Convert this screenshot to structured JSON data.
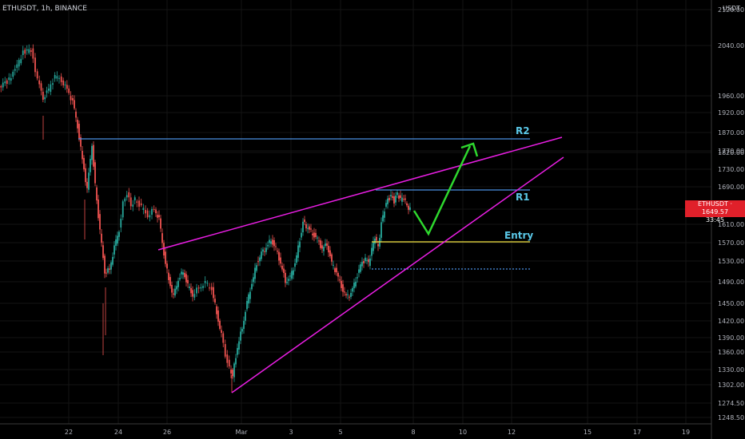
{
  "header": {
    "symbol_text": "ETHUSDT, 1h, BINANCE"
  },
  "price_axis": {
    "unit": "USDT"
  },
  "last_price": {
    "symbol": "ETHUSDT",
    "value": "1649.57",
    "countdown": "33:45"
  },
  "colors": {
    "background": "#000000",
    "up_candle": "#26a69a",
    "down_candle": "#ef5350",
    "wedge": "#e91ee3",
    "resistance": "#4a90e2",
    "entry": "#f5e642",
    "projection": "#2ed82e",
    "r_label": "#5ac8e8",
    "price_tag": "#e0202a"
  },
  "chart_data": {
    "type": "candlestick",
    "yticks": [
      "2120.00",
      "2040.00",
      "1960.00",
      "1920.00",
      "1870.00",
      "1820.00",
      "1770.00",
      "1730.00",
      "1690.00",
      "1650.00",
      "1610.00",
      "1570.00",
      "1530.00",
      "1490.00",
      "1450.00",
      "1420.00",
      "1390.00",
      "1360.00",
      "1330.00",
      "1302.00",
      "1274.50",
      "1248.50"
    ],
    "xticks": [
      "22",
      "24",
      "26",
      "Mar",
      "3",
      "5",
      "8",
      "10",
      "12",
      "15",
      "17",
      "19"
    ],
    "annotations": [
      {
        "type": "label",
        "text": "R2"
      },
      {
        "type": "label",
        "text": "R1"
      },
      {
        "type": "label",
        "text": "Entry"
      }
    ],
    "grid": true
  }
}
